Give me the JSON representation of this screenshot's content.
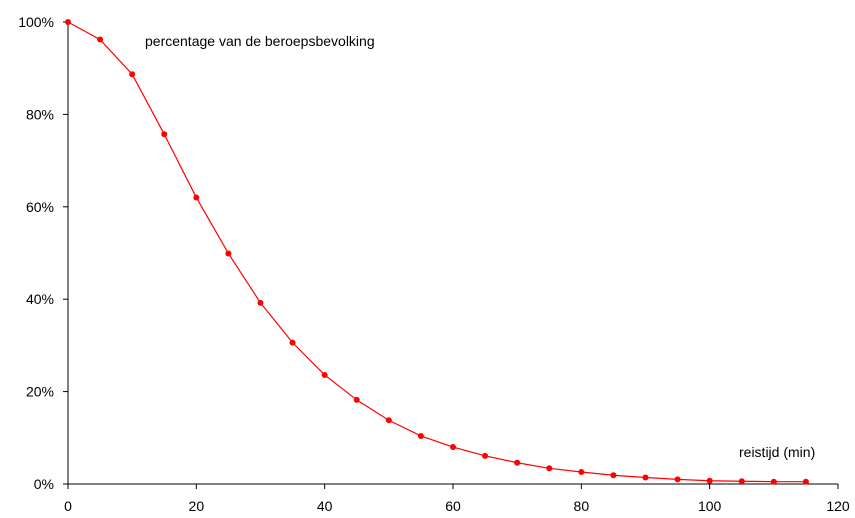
{
  "chart_data": {
    "type": "line",
    "title": "",
    "xlabel": "reistijd (min)",
    "ylabel": "percentage van de beroepsbevolking",
    "xlim": [
      0,
      120
    ],
    "ylim": [
      0,
      100
    ],
    "x_ticks": [
      0,
      20,
      40,
      60,
      80,
      100,
      120
    ],
    "x_tick_labels": [
      "0",
      "20",
      "40",
      "60",
      "80",
      "100",
      "120"
    ],
    "y_ticks": [
      0,
      20,
      40,
      60,
      80,
      100
    ],
    "y_tick_labels": [
      "0%",
      "20%",
      "40%",
      "60%",
      "80%",
      "100%"
    ],
    "grid": false,
    "legend": "none",
    "series": [
      {
        "color": "#ff0000",
        "marker": "circle",
        "x": [
          0,
          5,
          10,
          15,
          20,
          25,
          30,
          35,
          40,
          45,
          50,
          55,
          60,
          65,
          70,
          75,
          80,
          85,
          90,
          95,
          100,
          105,
          110,
          115
        ],
        "y": [
          100,
          96.2,
          88.7,
          75.7,
          62,
          49.9,
          39.2,
          30.6,
          23.6,
          18.2,
          13.8,
          10.4,
          8.0,
          6.1,
          4.6,
          3.4,
          2.6,
          1.9,
          1.4,
          1.0,
          0.7,
          0.6,
          0.5,
          0.5
        ]
      }
    ]
  }
}
